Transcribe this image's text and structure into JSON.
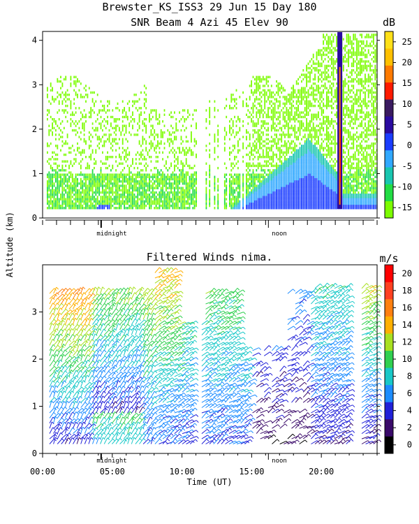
{
  "figure": {
    "title_line1": "Brewster_KS_ISS3  29 Jun 15 Day 180",
    "shared_ylabel": "Altitude (km)",
    "xlabel": "Time (UT)",
    "x_ticklabels": [
      "00:00",
      "05:00",
      "10:00",
      "15:00",
      "20:00"
    ],
    "midnight_label": "midnight",
    "noon_label": "noon"
  },
  "chart_data": [
    {
      "type": "heatmap",
      "title": "SNR Beam 4 Azi  45 Elev 90",
      "x_range_hours": [
        0,
        24
      ],
      "ylim": [
        0,
        4.2
      ],
      "yticks": [
        "0",
        "1",
        "2",
        "3",
        "4"
      ],
      "colorbar": {
        "unit": "dB",
        "ticks": [
          "-15",
          "-10",
          "-5",
          "0",
          "5",
          "10",
          "15",
          "20",
          "25"
        ],
        "colors": [
          "#7cfc00",
          "#22dd44",
          "#18c6b0",
          "#30a8ff",
          "#1a3cff",
          "#2a0aa0",
          "#3a1a60",
          "#ff1a00",
          "#ff7a00",
          "#ffc000",
          "#ffe018"
        ]
      },
      "hotspot_hour": 21.3,
      "midnight_hour": 4.2,
      "noon_hour": 16.2
    },
    {
      "type": "scatter",
      "title": "Filtered Winds nima.",
      "x_range_hours": [
        0,
        24
      ],
      "ylim": [
        0,
        4.0
      ],
      "yticks": [
        "0",
        "1",
        "2",
        "3"
      ],
      "colorbar": {
        "unit": "m/s",
        "ticks": [
          "0",
          "2",
          "4",
          "6",
          "8",
          "10",
          "12",
          "14",
          "16",
          "18",
          "20"
        ],
        "colors": [
          "#000000",
          "#3a0a6a",
          "#2020d8",
          "#1c8cff",
          "#18c8c8",
          "#30d050",
          "#a8e020",
          "#ffb000",
          "#ff8010",
          "#ff4020",
          "#ff0000"
        ]
      },
      "midnight_hour": 4.2,
      "noon_hour": 16.2
    }
  ]
}
